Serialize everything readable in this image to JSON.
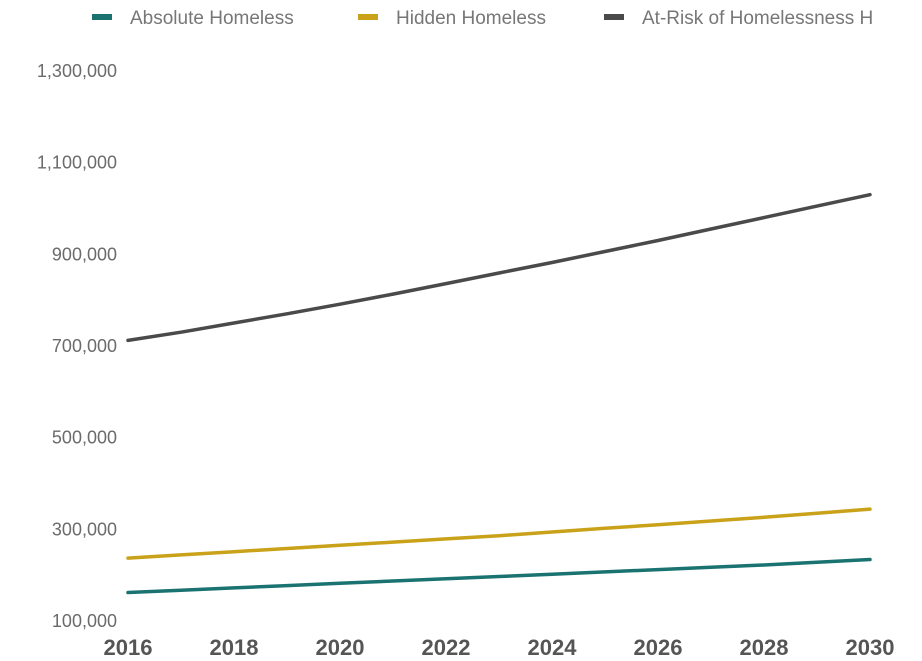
{
  "chart_data": {
    "type": "line",
    "x": [
      2016,
      2017,
      2018,
      2019,
      2020,
      2021,
      2022,
      2023,
      2024,
      2025,
      2026,
      2027,
      2028,
      2029,
      2030
    ],
    "x_ticks": [
      "2016",
      "2018",
      "2020",
      "2022",
      "2024",
      "2026",
      "2028",
      "2030"
    ],
    "y_ticks": [
      "100,000",
      "300,000",
      "500,000",
      "700,000",
      "900,000",
      "1,100,000",
      "1,300,000"
    ],
    "ylim": [
      100000,
      1300000
    ],
    "grid": false,
    "legend_position": "top",
    "series": [
      {
        "name": "Absolute Homeless",
        "color": "#1a7371",
        "values": [
          160000,
          165000,
          170000,
          175000,
          180000,
          185000,
          190000,
          195000,
          200000,
          205000,
          210000,
          215000,
          220000,
          226000,
          232000
        ]
      },
      {
        "name": "Hidden Homeless",
        "color": "#c9a21a",
        "values": [
          235000,
          242000,
          249000,
          256000,
          263000,
          270000,
          277000,
          284000,
          292000,
          300000,
          308000,
          316000,
          324000,
          333000,
          342000
        ]
      },
      {
        "name": "At-Risk of Homelessness H",
        "color": "#4a4a4a",
        "values": [
          710000,
          728000,
          748000,
          768000,
          789000,
          811000,
          834000,
          857000,
          880000,
          904000,
          928000,
          953000,
          978000,
          1003000,
          1028000
        ]
      }
    ]
  }
}
